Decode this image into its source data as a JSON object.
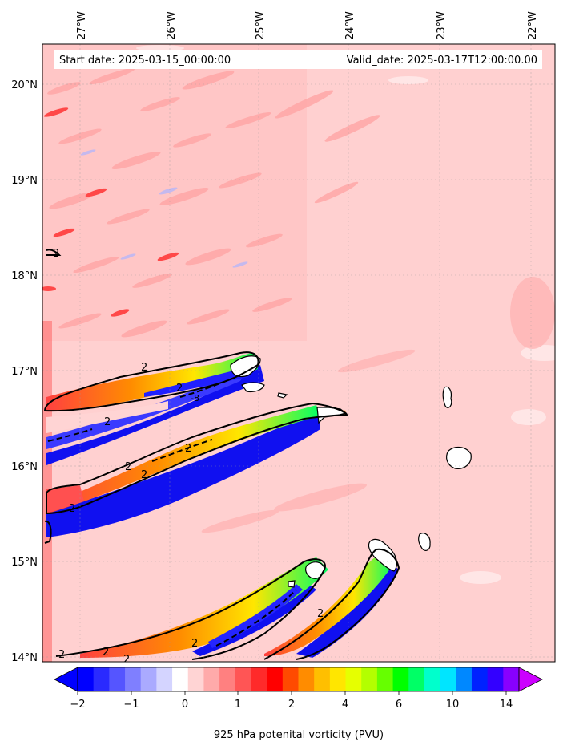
{
  "map": {
    "start_date": "Start date: 2025-03-15_00:00:00",
    "valid_date": "Valid_date: 2025-03-17T12:00:00.00",
    "lon_labels": [
      "27°W",
      "26°W",
      "25°W",
      "24°W",
      "23°W",
      "22°W"
    ],
    "lat_labels": [
      "20°N",
      "19°N",
      "18°N",
      "17°N",
      "16°N",
      "15°N",
      "14°N"
    ],
    "contour_label": "2",
    "contour_neg_label": "-8"
  },
  "colorbar": {
    "label": "925 hPa potenital vorticity (PVU)",
    "tick_labels": [
      "−2",
      "−1",
      "0",
      "1",
      "2",
      "4",
      "6",
      "10",
      "14"
    ],
    "colors": [
      "#0000ff",
      "#2a2aff",
      "#5555ff",
      "#7f7fff",
      "#aaaaff",
      "#d4d4ff",
      "#ffffff",
      "#ffd4d4",
      "#ffaaaa",
      "#ff8080",
      "#ff5555",
      "#ff2a2a",
      "#ff0000",
      "#ff4a00",
      "#ff8c00",
      "#ffbf00",
      "#ffe600",
      "#e6ff00",
      "#b3ff00",
      "#66ff00",
      "#00ff00",
      "#00ff66",
      "#00ffcc",
      "#00e5ff",
      "#0088ff",
      "#0022ff",
      "#3300ff",
      "#8800ff"
    ],
    "under_color": "#0000ff",
    "over_color": "#cc00ff"
  },
  "palette": {
    "background_pv": "#ffd0d0",
    "weak_pv": "#ffa9a9",
    "strong_pv": "#ff3333",
    "negative_pv": "#1010f0",
    "land": "#ffffff"
  }
}
